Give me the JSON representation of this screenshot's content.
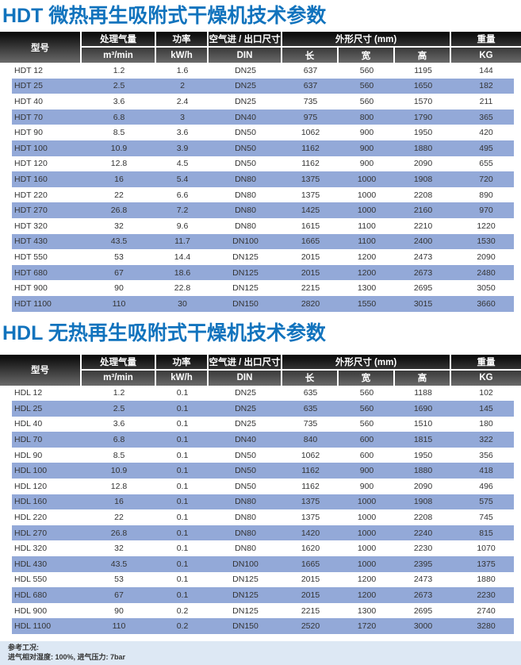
{
  "columns": {
    "model": "型号",
    "airflow_label": "处理气量",
    "airflow_unit": "m³/min",
    "power_label": "功率",
    "power_unit": "kW/h",
    "port_label": "空气进 / 出口尺寸",
    "port_unit": "DIN",
    "dims_label": "外形尺寸 (mm)",
    "dims_length": "长",
    "dims_width": "宽",
    "dims_height": "高",
    "weight_label": "重量",
    "weight_unit": "KG"
  },
  "tables": [
    {
      "id": "hdt",
      "title": "HDT 微热再生吸附式干燥机技术参数",
      "rows": [
        [
          "HDT 12",
          "1.2",
          "1.6",
          "DN25",
          "637",
          "560",
          "1195",
          "144"
        ],
        [
          "HDT 25",
          "2.5",
          "2",
          "DN25",
          "637",
          "560",
          "1650",
          "182"
        ],
        [
          "HDT 40",
          "3.6",
          "2.4",
          "DN25",
          "735",
          "560",
          "1570",
          "211"
        ],
        [
          "HDT 70",
          "6.8",
          "3",
          "DN40",
          "975",
          "800",
          "1790",
          "365"
        ],
        [
          "HDT 90",
          "8.5",
          "3.6",
          "DN50",
          "1062",
          "900",
          "1950",
          "420"
        ],
        [
          "HDT 100",
          "10.9",
          "3.9",
          "DN50",
          "1162",
          "900",
          "1880",
          "495"
        ],
        [
          "HDT 120",
          "12.8",
          "4.5",
          "DN50",
          "1162",
          "900",
          "2090",
          "655"
        ],
        [
          "HDT 160",
          "16",
          "5.4",
          "DN80",
          "1375",
          "1000",
          "1908",
          "720"
        ],
        [
          "HDT 220",
          "22",
          "6.6",
          "DN80",
          "1375",
          "1000",
          "2208",
          "890"
        ],
        [
          "HDT 270",
          "26.8",
          "7.2",
          "DN80",
          "1425",
          "1000",
          "2160",
          "970"
        ],
        [
          "HDT 320",
          "32",
          "9.6",
          "DN80",
          "1615",
          "1100",
          "2210",
          "1220"
        ],
        [
          "HDT 430",
          "43.5",
          "11.7",
          "DN100",
          "1665",
          "1100",
          "2400",
          "1530"
        ],
        [
          "HDT 550",
          "53",
          "14.4",
          "DN125",
          "2015",
          "1200",
          "2473",
          "2090"
        ],
        [
          "HDT 680",
          "67",
          "18.6",
          "DN125",
          "2015",
          "1200",
          "2673",
          "2480"
        ],
        [
          "HDT 900",
          "90",
          "22.8",
          "DN125",
          "2215",
          "1300",
          "2695",
          "3050"
        ],
        [
          "HDT 1100",
          "110",
          "30",
          "DN150",
          "2820",
          "1550",
          "3015",
          "3660"
        ]
      ]
    },
    {
      "id": "hdl",
      "title": "HDL 无热再生吸附式干燥机技术参数",
      "rows": [
        [
          "HDL 12",
          "1.2",
          "0.1",
          "DN25",
          "635",
          "560",
          "1188",
          "102"
        ],
        [
          "HDL 25",
          "2.5",
          "0.1",
          "DN25",
          "635",
          "560",
          "1690",
          "145"
        ],
        [
          "HDL 40",
          "3.6",
          "0.1",
          "DN25",
          "735",
          "560",
          "1510",
          "180"
        ],
        [
          "HDL 70",
          "6.8",
          "0.1",
          "DN40",
          "840",
          "600",
          "1815",
          "322"
        ],
        [
          "HDL 90",
          "8.5",
          "0.1",
          "DN50",
          "1062",
          "600",
          "1950",
          "356"
        ],
        [
          "HDL 100",
          "10.9",
          "0.1",
          "DN50",
          "1162",
          "900",
          "1880",
          "418"
        ],
        [
          "HDL 120",
          "12.8",
          "0.1",
          "DN50",
          "1162",
          "900",
          "2090",
          "496"
        ],
        [
          "HDL 160",
          "16",
          "0.1",
          "DN80",
          "1375",
          "1000",
          "1908",
          "575"
        ],
        [
          "HDL 220",
          "22",
          "0.1",
          "DN80",
          "1375",
          "1000",
          "2208",
          "745"
        ],
        [
          "HDL 270",
          "26.8",
          "0.1",
          "DN80",
          "1420",
          "1000",
          "2240",
          "815"
        ],
        [
          "HDL 320",
          "32",
          "0.1",
          "DN80",
          "1620",
          "1000",
          "2230",
          "1070"
        ],
        [
          "HDL 430",
          "43.5",
          "0.1",
          "DN100",
          "1665",
          "1000",
          "2395",
          "1375"
        ],
        [
          "HDL 550",
          "53",
          "0.1",
          "DN125",
          "2015",
          "1200",
          "2473",
          "1880"
        ],
        [
          "HDL 680",
          "67",
          "0.1",
          "DN125",
          "2015",
          "1200",
          "2673",
          "2230"
        ],
        [
          "HDL 900",
          "90",
          "0.2",
          "DN125",
          "2215",
          "1300",
          "2695",
          "2740"
        ],
        [
          "HDL 1100",
          "110",
          "0.2",
          "DN150",
          "2520",
          "1720",
          "3000",
          "3280"
        ]
      ]
    }
  ],
  "footer": {
    "line1": "参考工况:",
    "line2": "进气相对湿度: 100%, 进气压力: 7bar"
  },
  "colors": {
    "title_blue": "#1173bd",
    "stripe_blue": "#93a9d8",
    "footer_bg": "#dde8f4",
    "header_top": "#060606",
    "header_bottom": "#6a6a6a"
  }
}
